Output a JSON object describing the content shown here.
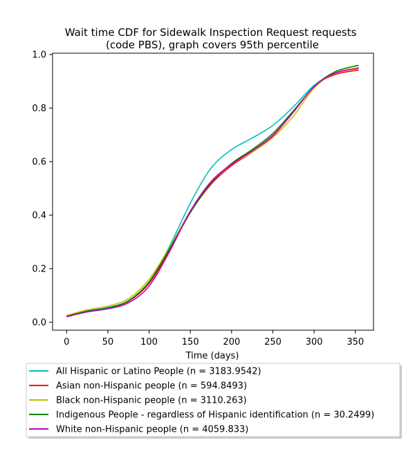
{
  "chart_data": {
    "type": "line",
    "title": "Wait time CDF for Sidewalk Inspection Request  requests\n(code PBS), graph covers 95th percentile",
    "xlabel": "Time (days)",
    "ylabel": "",
    "xlim": [
      -17,
      372
    ],
    "ylim": [
      -0.03,
      1.005
    ],
    "xticks": [
      0,
      50,
      100,
      150,
      200,
      250,
      300,
      350
    ],
    "yticks": [
      0.0,
      0.2,
      0.4,
      0.6,
      0.8,
      1.0
    ],
    "xtick_labels": [
      "0",
      "50",
      "100",
      "150",
      "200",
      "250",
      "300",
      "350"
    ],
    "ytick_labels": [
      "0.0",
      "0.2",
      "0.4",
      "0.6",
      "0.8",
      "1.0"
    ],
    "grid": false,
    "legend_position": "below",
    "series": [
      {
        "name": "All Hispanic or Latino People (n = 3183.9542)",
        "color": "#00bfbf",
        "x": [
          0,
          25,
          50,
          75,
          100,
          125,
          150,
          175,
          200,
          225,
          250,
          275,
          300,
          325,
          354
        ],
        "y": [
          0.022,
          0.042,
          0.055,
          0.08,
          0.15,
          0.285,
          0.445,
          0.575,
          0.645,
          0.688,
          0.735,
          0.805,
          0.885,
          0.93,
          0.95
        ]
      },
      {
        "name": "Asian non-Hispanic people (n = 594.8493)",
        "color": "#ff0000",
        "x": [
          0,
          25,
          50,
          75,
          100,
          125,
          150,
          175,
          200,
          225,
          250,
          275,
          300,
          325,
          354
        ],
        "y": [
          0.022,
          0.04,
          0.052,
          0.078,
          0.145,
          0.27,
          0.41,
          0.515,
          0.585,
          0.635,
          0.695,
          0.785,
          0.88,
          0.925,
          0.942
        ]
      },
      {
        "name": "Black non-Hispanic people (n = 3110.263)",
        "color": "#bfbf00",
        "x": [
          0,
          25,
          50,
          75,
          100,
          125,
          150,
          175,
          200,
          225,
          250,
          275,
          300,
          325,
          354
        ],
        "y": [
          0.025,
          0.046,
          0.06,
          0.088,
          0.16,
          0.28,
          0.415,
          0.52,
          0.59,
          0.635,
          0.69,
          0.77,
          0.875,
          0.93,
          0.952
        ]
      },
      {
        "name": "Indigenous People - regardless of Hispanic identification (n = 30.2499)",
        "color": "#008000",
        "x": [
          0,
          25,
          50,
          75,
          100,
          125,
          150,
          175,
          200,
          225,
          250,
          275,
          300,
          325,
          354
        ],
        "y": [
          0.022,
          0.041,
          0.053,
          0.08,
          0.15,
          0.275,
          0.41,
          0.52,
          0.593,
          0.645,
          0.705,
          0.79,
          0.88,
          0.935,
          0.96
        ]
      },
      {
        "name": "White non-Hispanic people (n = 4059.833)",
        "color": "#bf00bf",
        "x": [
          0,
          25,
          50,
          75,
          100,
          125,
          150,
          175,
          200,
          225,
          250,
          275,
          300,
          325,
          354
        ],
        "y": [
          0.02,
          0.038,
          0.05,
          0.072,
          0.135,
          0.265,
          0.415,
          0.525,
          0.59,
          0.64,
          0.698,
          0.785,
          0.88,
          0.93,
          0.948
        ]
      }
    ]
  }
}
